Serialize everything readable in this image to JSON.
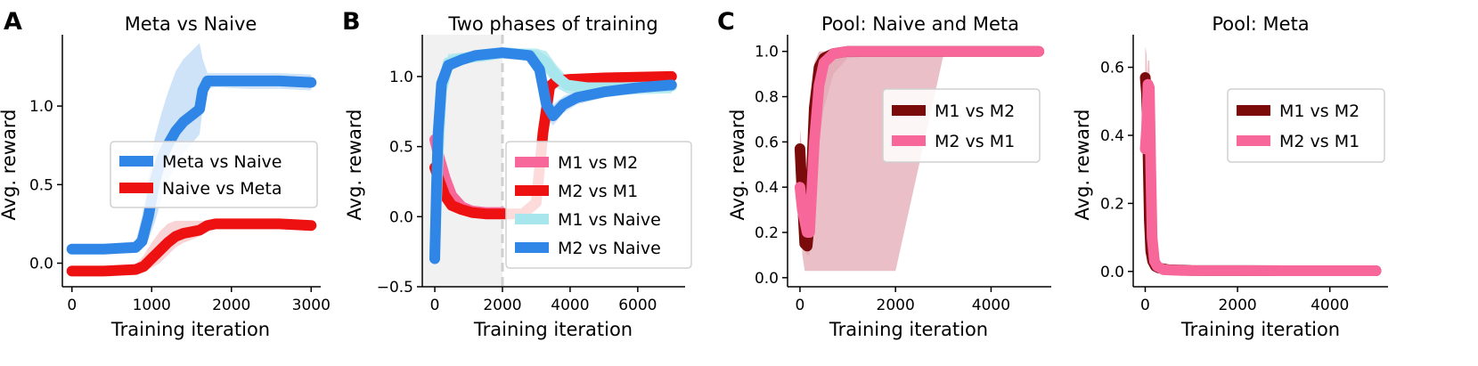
{
  "colors": {
    "blue": "#2f86e6",
    "blue_band": "#bdd8f6",
    "red": "#ee1111",
    "red_band": "#f7c6c8",
    "pink": "#f7679a",
    "pink_band": "#e3a9b6",
    "cyan": "#a7e6ec",
    "maroon": "#7b0a0a",
    "shade": "#f1f1f1",
    "vline": "#cfcfcf"
  },
  "panels": [
    {
      "letter": "A",
      "title": "Meta vs Naive",
      "xlabel": "Training iteration",
      "ylabel": "Avg. reward"
    },
    {
      "letter": "B",
      "title": "Two phases of training",
      "xlabel": "Training iteration",
      "ylabel": "Avg. reward"
    },
    {
      "letter": "C",
      "title": "Pool: Naive and Meta",
      "xlabel": "Training iteration",
      "ylabel": "Avg. reward"
    },
    {
      "letter": "",
      "title": "Pool: Meta",
      "xlabel": "Training iteration",
      "ylabel": "Avg. reward"
    }
  ],
  "chart_data": [
    {
      "type": "line",
      "title": "Meta vs Naive",
      "xlabel": "Training iteration",
      "ylabel": "Avg. reward",
      "xlim": [
        -120,
        3120
      ],
      "ylim": [
        -0.15,
        1.42
      ],
      "xticks": [
        0,
        1000,
        2000,
        3000
      ],
      "xtick_labels": [
        "0",
        "1000",
        "2000",
        "3000"
      ],
      "yticks": [
        0.0,
        0.5,
        1.0
      ],
      "ytick_labels": [
        "0.0",
        "0.5",
        "1.0"
      ],
      "legend_position": "center-right",
      "series": [
        {
          "name": "Meta vs Naive",
          "color_key": "blue",
          "band_color_key": "blue_band",
          "x": [
            0,
            400,
            800,
            880,
            960,
            1040,
            1120,
            1200,
            1300,
            1400,
            1500,
            1600,
            1640,
            1700,
            1800,
            2200,
            2600,
            3000
          ],
          "y": [
            0.09,
            0.09,
            0.1,
            0.14,
            0.3,
            0.52,
            0.66,
            0.75,
            0.84,
            0.9,
            0.94,
            0.98,
            1.1,
            1.16,
            1.16,
            1.16,
            1.16,
            1.15
          ],
          "lower": [
            0.06,
            0.06,
            0.07,
            0.1,
            0.15,
            0.26,
            0.4,
            0.52,
            0.62,
            0.7,
            0.76,
            0.82,
            0.98,
            1.11,
            1.12,
            1.11,
            1.11,
            1.1
          ],
          "upper": [
            0.12,
            0.12,
            0.14,
            0.3,
            0.55,
            0.8,
            0.95,
            1.08,
            1.22,
            1.3,
            1.35,
            1.4,
            1.3,
            1.21,
            1.21,
            1.21,
            1.21,
            1.2
          ]
        },
        {
          "name": "Naive vs Meta",
          "color_key": "red",
          "band_color_key": "red_band",
          "x": [
            0,
            400,
            800,
            900,
            1000,
            1100,
            1200,
            1300,
            1400,
            1500,
            1600,
            1700,
            1800,
            2200,
            2600,
            3000
          ],
          "y": [
            -0.05,
            -0.05,
            -0.04,
            -0.02,
            0.03,
            0.08,
            0.13,
            0.17,
            0.19,
            0.2,
            0.21,
            0.24,
            0.25,
            0.25,
            0.25,
            0.24
          ],
          "lower": [
            -0.07,
            -0.07,
            -0.06,
            -0.05,
            -0.03,
            0.0,
            0.05,
            0.1,
            0.13,
            0.15,
            0.17,
            0.22,
            0.23,
            0.23,
            0.23,
            0.22
          ],
          "upper": [
            -0.03,
            -0.03,
            -0.01,
            0.05,
            0.13,
            0.2,
            0.25,
            0.27,
            0.27,
            0.27,
            0.27,
            0.27,
            0.27,
            0.27,
            0.27,
            0.26
          ]
        }
      ]
    },
    {
      "type": "line",
      "title": "Two phases of training",
      "xlabel": "Training iteration",
      "ylabel": "Avg. reward",
      "xlim": [
        -370,
        7400
      ],
      "ylim": [
        -0.5,
        1.26
      ],
      "xticks": [
        0,
        2000,
        4000,
        6000
      ],
      "xtick_labels": [
        "0",
        "2000",
        "4000",
        "6000"
      ],
      "yticks": [
        -0.5,
        0.0,
        0.5,
        1.0
      ],
      "ytick_labels": [
        "−0.5",
        "0.0",
        "0.5",
        "1.0"
      ],
      "shaded_region": [
        -370,
        2000
      ],
      "vline_x": 2000,
      "legend_position": "lower-right",
      "series": [
        {
          "name": "M1 vs M2",
          "color_key": "pink",
          "band_color_key": "red_band",
          "x": [
            0,
            100,
            300,
            500,
            800,
            1100,
            1500,
            1990
          ],
          "y": [
            0.55,
            0.45,
            0.28,
            0.15,
            0.07,
            0.04,
            0.03,
            0.03
          ],
          "lower": [
            0.45,
            0.35,
            0.2,
            0.1,
            0.04,
            0.02,
            0.01,
            0.01
          ],
          "upper": [
            0.6,
            0.55,
            0.38,
            0.22,
            0.12,
            0.07,
            0.05,
            0.05
          ]
        },
        {
          "name": "M2 vs M1",
          "color_key": "red",
          "band_color_key": "red_band",
          "x": [
            0,
            100,
            300,
            500,
            800,
            1100,
            1500,
            1990,
            2600,
            3000,
            3200,
            3400,
            3600,
            4000,
            5000,
            7000
          ],
          "y": [
            0.35,
            0.28,
            0.15,
            0.08,
            0.05,
            0.03,
            0.02,
            0.02,
            0.02,
            0.1,
            0.6,
            0.93,
            0.97,
            0.98,
            0.99,
            1.0
          ],
          "lower": [
            0.3,
            0.22,
            0.1,
            0.05,
            0.03,
            0.02,
            0.01,
            0.01,
            0.01,
            0.05,
            0.5,
            0.88,
            0.94,
            0.96,
            0.97,
            0.98
          ],
          "upper": [
            0.4,
            0.34,
            0.2,
            0.12,
            0.07,
            0.05,
            0.03,
            0.03,
            0.03,
            0.2,
            0.75,
            0.98,
            1.0,
            1.0,
            1.01,
            1.02
          ]
        },
        {
          "name": "M1 vs Naive",
          "color_key": "cyan",
          "band_color_key": "cyan",
          "x": [
            0,
            100,
            200,
            400,
            800,
            1500,
            1990,
            2500,
            3000,
            3300,
            3600,
            3900,
            4500,
            5500,
            7000
          ],
          "y": [
            -0.25,
            0.45,
            0.9,
            1.1,
            1.13,
            1.15,
            1.17,
            1.16,
            1.15,
            1.1,
            1.0,
            0.94,
            0.92,
            0.92,
            0.93
          ],
          "lower": [
            -0.35,
            0.3,
            0.8,
            1.04,
            1.09,
            1.11,
            1.13,
            1.12,
            1.1,
            1.02,
            0.92,
            0.88,
            0.87,
            0.87,
            0.88
          ],
          "upper": [
            -0.15,
            0.6,
            1.0,
            1.16,
            1.17,
            1.19,
            1.21,
            1.2,
            1.2,
            1.18,
            1.08,
            1.0,
            0.97,
            0.97,
            0.98
          ]
        },
        {
          "name": "M2 vs Naive",
          "color_key": "blue",
          "band_color_key": "blue_band",
          "x": [
            0,
            50,
            100,
            200,
            400,
            800,
            1200,
            1600,
            1990,
            2400,
            2800,
            3100,
            3300,
            3500,
            3800,
            4200,
            5000,
            6000,
            7000
          ],
          "y": [
            -0.3,
            0.2,
            0.6,
            0.95,
            1.08,
            1.12,
            1.15,
            1.16,
            1.17,
            1.16,
            1.15,
            1.05,
            0.8,
            0.72,
            0.8,
            0.85,
            0.89,
            0.92,
            0.94
          ],
          "lower": [
            -0.35,
            0.1,
            0.5,
            0.88,
            1.03,
            1.08,
            1.11,
            1.12,
            1.13,
            1.12,
            1.11,
            0.98,
            0.7,
            0.65,
            0.74,
            0.8,
            0.85,
            0.88,
            0.9
          ],
          "upper": [
            -0.25,
            0.3,
            0.7,
            1.02,
            1.13,
            1.16,
            1.19,
            1.2,
            1.21,
            1.2,
            1.19,
            1.12,
            0.9,
            0.8,
            0.86,
            0.9,
            0.93,
            0.96,
            0.98
          ]
        }
      ]
    },
    {
      "type": "line",
      "title": "Pool: Naive and Meta",
      "xlabel": "Training iteration",
      "ylabel": "Avg. reward",
      "xlim": [
        -260,
        5260
      ],
      "ylim": [
        -0.04,
        1.05
      ],
      "xticks": [
        0,
        2000,
        4000
      ],
      "xtick_labels": [
        "0",
        "2000",
        "4000"
      ],
      "yticks": [
        0.0,
        0.2,
        0.4,
        0.6,
        0.8,
        1.0
      ],
      "ytick_labels": [
        "0.0",
        "0.2",
        "0.4",
        "0.6",
        "0.8",
        "1.0"
      ],
      "legend_position": "upper-right",
      "series": [
        {
          "name": "M1 vs M2",
          "color_key": "maroon",
          "band_color_key": "pink_band",
          "x": [
            0,
            50,
            100,
            150,
            200,
            300,
            400,
            500,
            700,
            1000,
            2000,
            3000,
            4000,
            5000
          ],
          "y": [
            0.57,
            0.35,
            0.15,
            0.14,
            0.25,
            0.75,
            0.93,
            0.97,
            0.99,
            1.0,
            1.0,
            1.0,
            1.0,
            1.0
          ],
          "lower": [
            0.4,
            0.1,
            0.03,
            0.03,
            0.03,
            0.03,
            0.03,
            0.03,
            0.03,
            0.03,
            0.03,
            0.98,
            0.99,
            0.99
          ],
          "upper": [
            0.66,
            0.55,
            0.3,
            0.4,
            0.7,
            0.95,
            1.0,
            1.0,
            1.0,
            1.0,
            1.0,
            1.0,
            1.0,
            1.0
          ]
        },
        {
          "name": "M2 vs M1",
          "color_key": "pink",
          "band_color_key": "pink_band",
          "x": [
            0,
            50,
            100,
            150,
            200,
            300,
            400,
            500,
            700,
            1000,
            2000,
            3000,
            4000,
            5000
          ],
          "y": [
            0.4,
            0.3,
            0.25,
            0.2,
            0.2,
            0.6,
            0.85,
            0.95,
            0.99,
            1.0,
            1.0,
            1.0,
            1.0,
            1.0
          ],
          "lower": [
            0.3,
            0.2,
            0.12,
            0.1,
            0.1,
            0.4,
            0.6,
            0.75,
            0.9,
            0.97,
            0.99,
            0.99,
            0.99,
            0.99
          ],
          "upper": [
            0.5,
            0.45,
            0.4,
            0.35,
            0.4,
            0.8,
            0.98,
            1.0,
            1.0,
            1.0,
            1.0,
            1.0,
            1.0,
            1.0
          ]
        }
      ]
    },
    {
      "type": "line",
      "title": "Pool: Meta",
      "xlabel": "Training iteration",
      "ylabel": "Avg. reward",
      "xlim": [
        -260,
        5260
      ],
      "ylim": [
        -0.045,
        0.68
      ],
      "xticks": [
        0,
        2000,
        4000
      ],
      "xtick_labels": [
        "0",
        "2000",
        "4000"
      ],
      "yticks": [
        0.0,
        0.2,
        0.4,
        0.6
      ],
      "ytick_labels": [
        "0.0",
        "0.2",
        "0.4",
        "0.6"
      ],
      "legend_position": "upper-right",
      "series": [
        {
          "name": "M1 vs M2",
          "color_key": "maroon",
          "band_color_key": "pink_band",
          "x": [
            0,
            30,
            60,
            90,
            120,
            160,
            220,
            300,
            500,
            1000,
            3000,
            5000
          ],
          "y": [
            0.57,
            0.52,
            0.35,
            0.15,
            0.06,
            0.03,
            0.015,
            0.01,
            0.005,
            0.003,
            0.002,
            0.002
          ],
          "lower": [
            0.48,
            0.4,
            0.2,
            0.06,
            0.02,
            0.005,
            0.0,
            0.0,
            0.0,
            0.0,
            0.0,
            0.0
          ],
          "upper": [
            0.66,
            0.64,
            0.48,
            0.28,
            0.12,
            0.06,
            0.03,
            0.02,
            0.01,
            0.006,
            0.004,
            0.004
          ]
        },
        {
          "name": "M2 vs M1",
          "color_key": "pink",
          "band_color_key": "pink_band",
          "x": [
            0,
            30,
            60,
            90,
            120,
            150,
            200,
            260,
            400,
            800,
            3000,
            5000
          ],
          "y": [
            0.36,
            0.42,
            0.55,
            0.54,
            0.3,
            0.1,
            0.03,
            0.015,
            0.005,
            0.003,
            0.002,
            0.002
          ],
          "lower": [
            0.3,
            0.35,
            0.45,
            0.4,
            0.15,
            0.04,
            0.01,
            0.005,
            0.0,
            0.0,
            0.0,
            0.0
          ],
          "upper": [
            0.42,
            0.5,
            0.62,
            0.62,
            0.45,
            0.18,
            0.06,
            0.03,
            0.01,
            0.006,
            0.004,
            0.004
          ]
        }
      ]
    }
  ]
}
